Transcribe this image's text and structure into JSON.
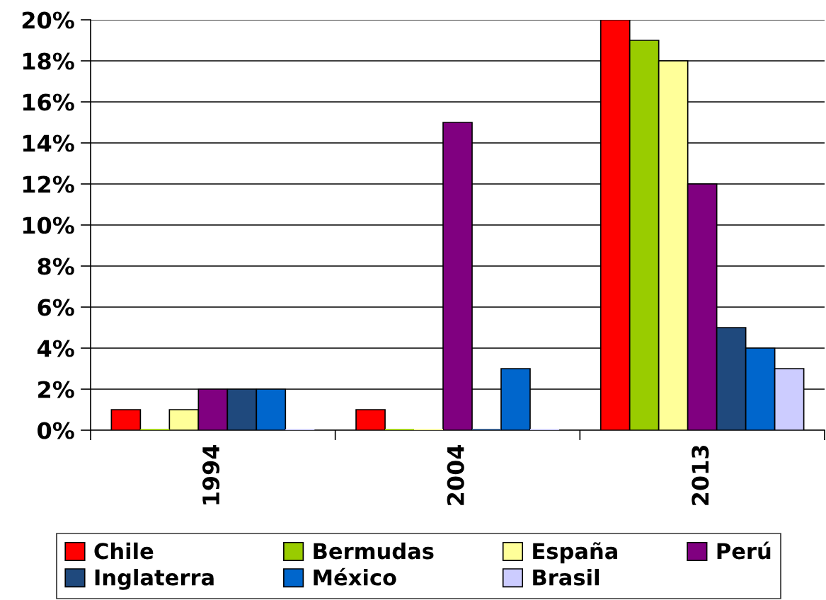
{
  "chart_data": {
    "type": "bar",
    "categories": [
      "1994",
      "2004",
      "2013"
    ],
    "series": [
      {
        "name": "Chile",
        "color": "#ff0000",
        "values": [
          1,
          1,
          20
        ]
      },
      {
        "name": "Bermudas",
        "color": "#99cc00",
        "values": [
          0,
          0,
          19
        ]
      },
      {
        "name": "España",
        "color": "#ffff99",
        "values": [
          1,
          0,
          18
        ]
      },
      {
        "name": "Perú",
        "color": "#800080",
        "values": [
          2,
          15,
          12
        ]
      },
      {
        "name": "Inglaterra",
        "color": "#1f497d",
        "values": [
          2,
          0,
          5
        ]
      },
      {
        "name": "México",
        "color": "#0066cc",
        "values": [
          2,
          3,
          4
        ]
      },
      {
        "name": "Brasil",
        "color": "#ccccff",
        "values": [
          0,
          0,
          3
        ]
      }
    ],
    "ylim": [
      0,
      20
    ],
    "yticks": [
      {
        "value": 0,
        "label": "0%"
      },
      {
        "value": 2,
        "label": "2%"
      },
      {
        "value": 4,
        "label": "4%"
      },
      {
        "value": 6,
        "label": "6%"
      },
      {
        "value": 8,
        "label": "8%"
      },
      {
        "value": 10,
        "label": "10%"
      },
      {
        "value": 12,
        "label": "12%"
      },
      {
        "value": 14,
        "label": "14%"
      },
      {
        "value": 16,
        "label": "16%"
      },
      {
        "value": 18,
        "label": "18%"
      },
      {
        "value": 20,
        "label": "20%"
      }
    ],
    "grid": "y",
    "legend": "bottom"
  }
}
